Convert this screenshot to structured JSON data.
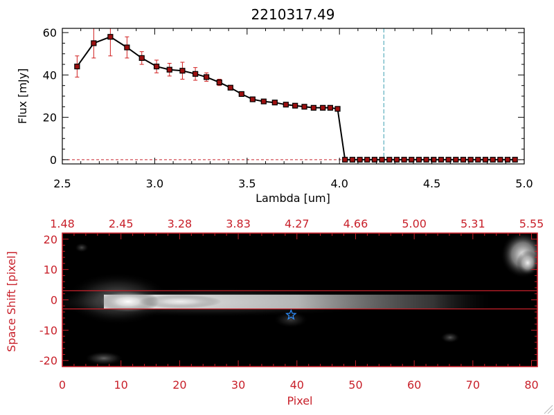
{
  "chart_data": [
    {
      "type": "line",
      "title": "2210317.49",
      "xlabel": "Lambda [um]",
      "ylabel": "Flux [mJy]",
      "xlim": [
        2.5,
        5.0
      ],
      "ylim": [
        -2,
        62
      ],
      "xticks": [
        "2.5",
        "3.0",
        "3.5",
        "4.0",
        "4.5",
        "5.0"
      ],
      "yticks": [
        "0",
        "20",
        "40",
        "60"
      ],
      "grid": false,
      "vline_x": 4.24,
      "series": [
        {
          "x": [
            2.58,
            2.67,
            2.76,
            2.85,
            2.93,
            3.01,
            3.08,
            3.15,
            3.22,
            3.28,
            3.35,
            3.41,
            3.47,
            3.53,
            3.59,
            3.65,
            3.71,
            3.76,
            3.81,
            3.86,
            3.91,
            3.95,
            3.99,
            4.03,
            4.07,
            4.11,
            4.15,
            4.19,
            4.23,
            4.27,
            4.31,
            4.35,
            4.39,
            4.43,
            4.47,
            4.51,
            4.55,
            4.59,
            4.63,
            4.67,
            4.71,
            4.75,
            4.79,
            4.83,
            4.87,
            4.91,
            4.95
          ],
          "y": [
            44,
            55,
            58,
            53,
            48,
            44,
            42.5,
            42,
            40.5,
            39,
            36.5,
            34,
            31,
            28.5,
            27.5,
            27,
            26,
            25.5,
            25,
            24.5,
            24.5,
            24.5,
            24,
            0,
            0,
            0,
            0,
            0,
            0,
            0,
            0,
            0,
            0,
            0,
            0,
            0,
            0,
            0,
            0,
            0,
            0,
            0,
            0,
            0,
            0,
            0,
            0
          ],
          "yerr": [
            5,
            7,
            9,
            5,
            3,
            3,
            3,
            4,
            3,
            2,
            1.5,
            1,
            0.8,
            0.5,
            0.5,
            0.5,
            0.5,
            0.5,
            0.5,
            0.5,
            0.5,
            0.5,
            0.5,
            0,
            0,
            0,
            0,
            0,
            0,
            0,
            0,
            0,
            0,
            0,
            0,
            0,
            0,
            0,
            0,
            0,
            0,
            0,
            0,
            0,
            0,
            0,
            0
          ]
        }
      ]
    },
    {
      "type": "heatmap",
      "xlabel": "Pixel",
      "ylabel": "Space Shift [pixel]",
      "xlim": [
        0,
        81
      ],
      "ylim": [
        -22,
        22
      ],
      "xticks": [
        "0",
        "10",
        "20",
        "30",
        "40",
        "50",
        "60",
        "70",
        "80"
      ],
      "yticks": [
        "-20",
        "-10",
        "0",
        "10",
        "20"
      ],
      "top_axis_ticks": [
        "1.48",
        "2.45",
        "3.28",
        "3.83",
        "4.27",
        "4.66",
        "5.00",
        "5.31",
        "5.55"
      ],
      "hlines": [
        3,
        -3
      ],
      "star_marker": {
        "x": 39,
        "y": -5
      }
    }
  ]
}
